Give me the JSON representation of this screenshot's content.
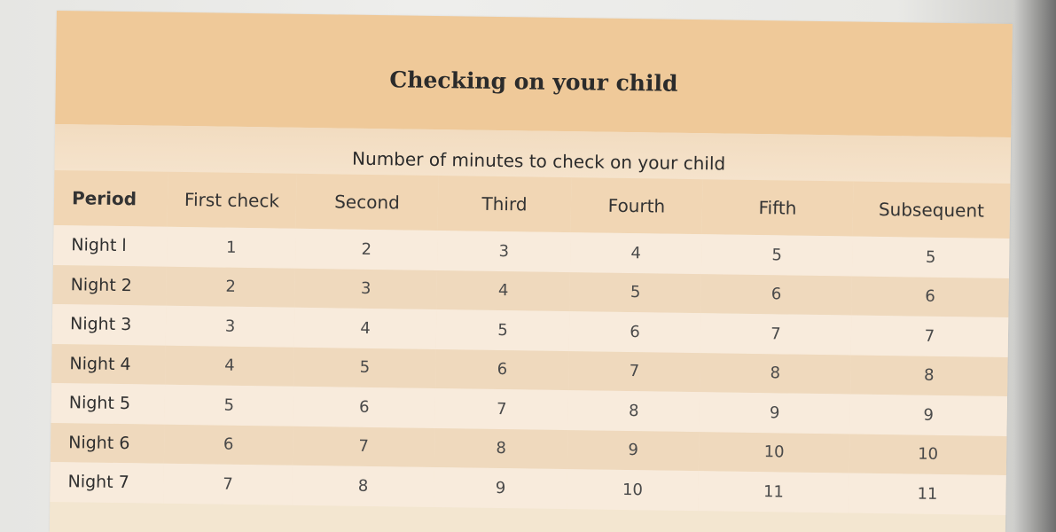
{
  "title": "Checking on your child",
  "subtitle": "Number of minutes to check on your child",
  "headers": [
    "Period",
    "First check",
    "Second",
    "Third",
    "Fourth",
    "Fifth",
    "Subsequent"
  ],
  "rows": [
    [
      "Night l",
      "1",
      "2",
      "3",
      "4",
      "5",
      "5"
    ],
    [
      "Night 2",
      "2",
      "3",
      "4",
      "5",
      "6",
      "6"
    ],
    [
      "Night 3",
      "3",
      "4",
      "5",
      "6",
      "7",
      "7"
    ],
    [
      "Night 4",
      "4",
      "5",
      "6",
      "7",
      "8",
      "8"
    ],
    [
      "Night 5",
      "5",
      "6",
      "7",
      "8",
      "9",
      "9"
    ],
    [
      "Night 6",
      "6",
      "7",
      "8",
      "9",
      "10",
      "10"
    ],
    [
      "Night 7",
      "7",
      "8",
      "9",
      "10",
      "11",
      "11"
    ]
  ],
  "colors": {
    "title_band": "#efc999",
    "header_band": "#f1d6b4",
    "row_light": "#f8ebdc",
    "row_dark": "#efd9bd"
  }
}
